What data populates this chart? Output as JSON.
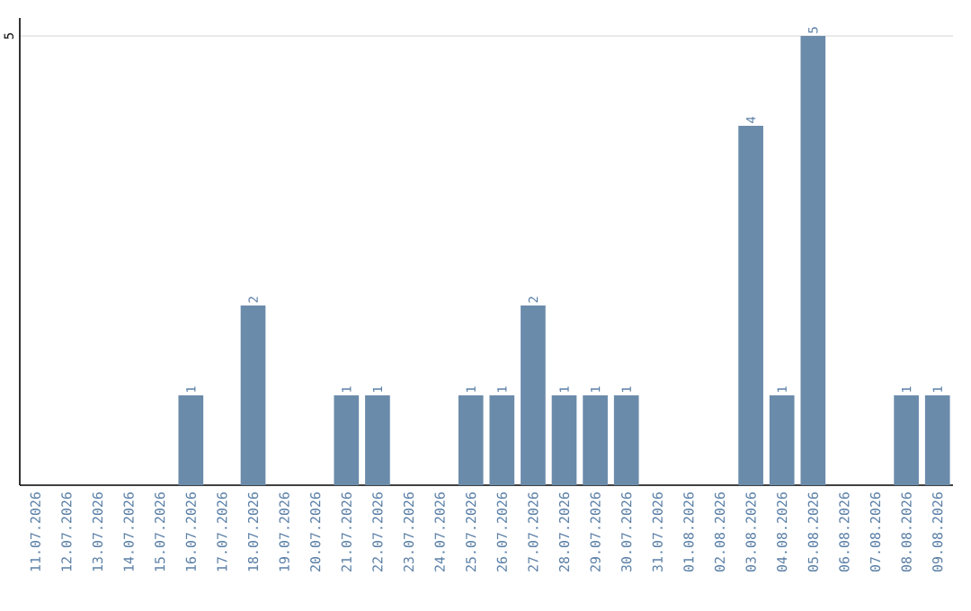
{
  "chart_data": {
    "type": "bar",
    "categories": [
      "11.07.2026",
      "12.07.2026",
      "13.07.2026",
      "14.07.2026",
      "15.07.2026",
      "16.07.2026",
      "17.07.2026",
      "18.07.2026",
      "19.07.2026",
      "20.07.2026",
      "21.07.2026",
      "22.07.2026",
      "23.07.2026",
      "24.07.2026",
      "25.07.2026",
      "26.07.2026",
      "27.07.2026",
      "28.07.2026",
      "29.07.2026",
      "30.07.2026",
      "31.07.2026",
      "01.08.2026",
      "02.08.2026",
      "03.08.2026",
      "04.08.2026",
      "05.08.2026",
      "06.08.2026",
      "07.08.2026",
      "08.08.2026",
      "09.08.2026"
    ],
    "values": [
      0,
      0,
      0,
      0,
      0,
      1,
      0,
      2,
      0,
      0,
      1,
      1,
      0,
      0,
      1,
      1,
      2,
      1,
      1,
      1,
      0,
      0,
      0,
      4,
      1,
      5,
      0,
      0,
      1,
      1
    ],
    "value_labels": [
      null,
      null,
      null,
      null,
      null,
      "1",
      null,
      "2",
      null,
      null,
      "1",
      "1",
      null,
      null,
      "1",
      "1",
      "2",
      "1",
      "1",
      "1",
      null,
      null,
      null,
      "4",
      "1",
      "5",
      null,
      null,
      "1",
      "1"
    ],
    "color": "#6b8bab",
    "ylim": [
      0,
      5.2
    ],
    "yticks": [
      5
    ],
    "grid": "y"
  }
}
